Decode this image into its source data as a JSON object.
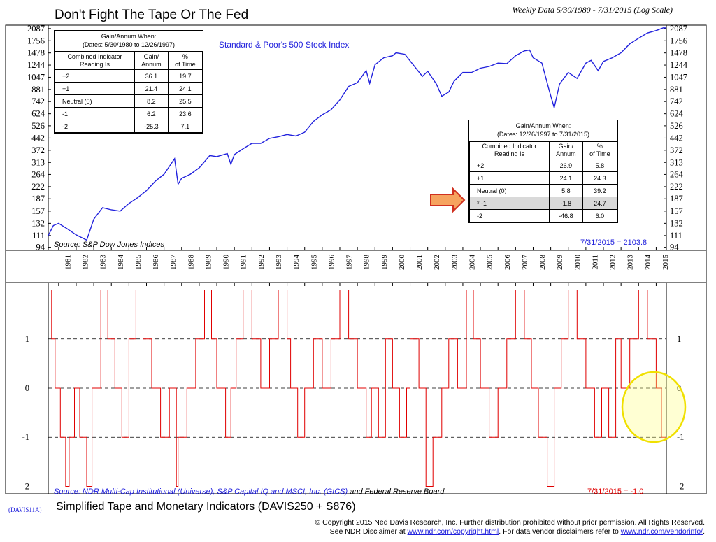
{
  "header": {
    "title": "Don't Fight The Tape Or The Fed",
    "subtitle": "Weekly Data 5/30/1980 - 7/31/2015 (Log Scale)"
  },
  "top_chart": {
    "series_label": "Standard & Poor's 500 Stock Index",
    "source": "Source: S&P Dow Jones Indices",
    "last_value": "7/31/2015 = 2103.8",
    "line_color": "#2222dd"
  },
  "table1": {
    "title_line1": "Gain/Annum When:",
    "title_line2": "(Dates: 5/30/1980 to 12/26/1997)",
    "col1_line1": "Combined Indicator",
    "col1_line2": "Reading Is",
    "col2_line1": "Gain/",
    "col2_line2": "Annum",
    "col3_line1": "%",
    "col3_line2": "of Time",
    "rows": [
      {
        "reading": "+2",
        "gain": "36.1",
        "time": "19.7"
      },
      {
        "reading": "+1",
        "gain": "21.4",
        "time": "24.1"
      },
      {
        "reading": "Neutral (0)",
        "gain": "8.2",
        "time": "25.5"
      },
      {
        "reading": "-1",
        "gain": "6.2",
        "time": "23.6"
      },
      {
        "reading": "-2",
        "gain": "-25.3",
        "time": "7.1"
      }
    ]
  },
  "table2": {
    "title_line1": "Gain/Annum When:",
    "title_line2": "(Dates: 12/26/1997 to 7/31/2015)",
    "col1_line1": "Combined Indicator",
    "col1_line2": "Reading Is",
    "col2_line1": "Gain/",
    "col2_line2": "Annum",
    "col3_line1": "%",
    "col3_line2": "of Time",
    "rows": [
      {
        "reading": "+2",
        "gain": "26.9",
        "time": "5.8"
      },
      {
        "reading": "+1",
        "gain": "24.1",
        "time": "24.3"
      },
      {
        "reading": "Neutral (0)",
        "gain": "5.8",
        "time": "39.2"
      },
      {
        "reading": "* -1",
        "gain": "-1.8",
        "time": "24.7"
      },
      {
        "reading": "-2",
        "gain": "-46.8",
        "time": "6.0"
      }
    ],
    "highlight_row": 3
  },
  "bottom_chart": {
    "source_blue": "Source: NDR Multi-Cap Institutional (Universe), S&P Capital IQ and MSCI, Inc. (GICS)",
    "source_black": " and Federal Reserve Board",
    "last_value": "7/31/2015 = -1.0",
    "line_color": "#e00000"
  },
  "footer": {
    "chart_id": "(DAVIS11A)",
    "title": "Simplified Tape and Monetary Indicators (DAVIS250 + S876)",
    "line1": "© Copyright 2015 Ned Davis Research, Inc.  Further distribution prohibited without prior permission.  All Rights Reserved.",
    "line2_a": "See NDR Disclaimer at ",
    "link1": "www.ndr.com/copyright.html",
    "line2_b": ". For data vendor disclaimers refer to ",
    "link2": "www.ndr.com/vendorinfo/",
    "line2_c": "."
  },
  "chart_data": [
    {
      "type": "line",
      "scale": "log",
      "y_ticks": [
        94,
        111,
        132,
        157,
        187,
        222,
        264,
        313,
        372,
        442,
        526,
        624,
        742,
        881,
        1047,
        1244,
        1478,
        1756,
        2087
      ],
      "ylim": [
        90,
        2190
      ],
      "xlim": [
        1980.41,
        2015.58
      ],
      "x": [
        1980.41,
        1980.7,
        1981.0,
        1981.5,
        1982.0,
        1982.6,
        1983.0,
        1983.5,
        1984.0,
        1984.5,
        1985.0,
        1985.5,
        1986.0,
        1986.5,
        1987.0,
        1987.6,
        1987.8,
        1988.0,
        1988.5,
        1989.0,
        1989.6,
        1990.0,
        1990.6,
        1990.8,
        1991.0,
        1991.5,
        1992.0,
        1992.5,
        1993.0,
        1993.5,
        1994.0,
        1994.5,
        1995.0,
        1995.5,
        1996.0,
        1996.5,
        1997.0,
        1997.5,
        1998.0,
        1998.5,
        1998.7,
        1999.0,
        1999.5,
        2000.0,
        2000.2,
        2000.7,
        2001.0,
        2001.7,
        2002.0,
        2002.5,
        2002.8,
        2003.2,
        2003.5,
        2004.0,
        2004.5,
        2005.0,
        2005.5,
        2006.0,
        2006.5,
        2007.0,
        2007.5,
        2007.8,
        2008.0,
        2008.5,
        2008.9,
        2009.2,
        2009.5,
        2010.0,
        2010.5,
        2011.0,
        2011.3,
        2011.7,
        2012.0,
        2012.5,
        2013.0,
        2013.5,
        2014.0,
        2014.5,
        2015.0,
        2015.4,
        2015.58
      ],
      "y": [
        111,
        128,
        132,
        122,
        112,
        104,
        140,
        165,
        160,
        157,
        175,
        190,
        210,
        240,
        265,
        330,
        230,
        250,
        265,
        290,
        345,
        340,
        355,
        305,
        350,
        380,
        410,
        410,
        440,
        450,
        465,
        455,
        480,
        560,
        615,
        660,
        760,
        920,
        970,
        1150,
        960,
        1250,
        1380,
        1420,
        1480,
        1450,
        1320,
        1060,
        1140,
        950,
        800,
        850,
        990,
        1120,
        1120,
        1190,
        1220,
        1280,
        1270,
        1420,
        1520,
        1540,
        1380,
        1280,
        880,
        680,
        950,
        1120,
        1030,
        1280,
        1330,
        1150,
        1310,
        1380,
        1480,
        1680,
        1820,
        1960,
        2030,
        2110,
        2104
      ],
      "series_label": "Standard & Poor's 500 Stock Index"
    },
    {
      "type": "line",
      "step": true,
      "y_ticks": [
        1,
        0,
        -1,
        -2
      ],
      "ylim": [
        -2.15,
        2.15
      ],
      "x_ticks": [
        "1981",
        "1982",
        "1983",
        "1984",
        "1985",
        "1986",
        "1987",
        "1988",
        "1989",
        "1990",
        "1991",
        "1992",
        "1993",
        "1994",
        "1995",
        "1996",
        "1997",
        "1998",
        "1999",
        "2000",
        "2001",
        "2002",
        "2003",
        "2004",
        "2005",
        "2006",
        "2007",
        "2008",
        "2009",
        "2010",
        "2011",
        "2012",
        "2013",
        "2014",
        "2015"
      ],
      "x": [
        1980.41,
        1980.6,
        1980.8,
        1981.1,
        1981.4,
        1981.6,
        1981.9,
        1982.2,
        1982.6,
        1982.9,
        1983.4,
        1983.8,
        1984.2,
        1984.6,
        1985.0,
        1985.4,
        1985.8,
        1986.3,
        1986.8,
        1987.3,
        1987.7,
        1987.8,
        1988.3,
        1988.8,
        1989.3,
        1989.7,
        1990.0,
        1990.5,
        1990.8,
        1991.1,
        1991.5,
        1992.0,
        1992.5,
        1993.0,
        1993.5,
        1994.0,
        1994.2,
        1994.6,
        1995.0,
        1995.5,
        1996.0,
        1996.5,
        1997.0,
        1997.5,
        1998.0,
        1998.5,
        1998.8,
        1999.2,
        1999.6,
        2000.0,
        2000.4,
        2000.8,
        2001.0,
        2001.5,
        2001.9,
        2002.3,
        2002.8,
        2003.2,
        2003.7,
        2004.2,
        2004.6,
        2005.0,
        2005.5,
        2006.0,
        2006.5,
        2007.0,
        2007.5,
        2007.9,
        2008.3,
        2008.8,
        2009.2,
        2009.6,
        2010.0,
        2010.5,
        2011.0,
        2011.5,
        2011.9,
        2012.3,
        2012.7,
        2013.0,
        2013.5,
        2014.0,
        2014.5,
        2015.0,
        2015.3,
        2015.58
      ],
      "y": [
        2,
        1,
        0,
        -1,
        -2,
        -1,
        0,
        -1,
        -2,
        0,
        2,
        1,
        0,
        -1,
        1,
        2,
        1,
        0,
        -1,
        0,
        -2,
        -1,
        0,
        1,
        2,
        1,
        0,
        -1,
        0,
        1,
        2,
        1,
        0,
        1,
        2,
        1,
        0,
        -1,
        0,
        1,
        0,
        1,
        2,
        1,
        0,
        -1,
        0,
        -1,
        1,
        0,
        -1,
        0,
        1,
        0,
        -2,
        -1,
        0,
        1,
        0,
        2,
        1,
        0,
        -1,
        0,
        1,
        2,
        1,
        0,
        -1,
        -2,
        0,
        1,
        2,
        1,
        0,
        -1,
        0,
        -1,
        1,
        0,
        1,
        2,
        1,
        0,
        -1,
        -1
      ]
    }
  ]
}
